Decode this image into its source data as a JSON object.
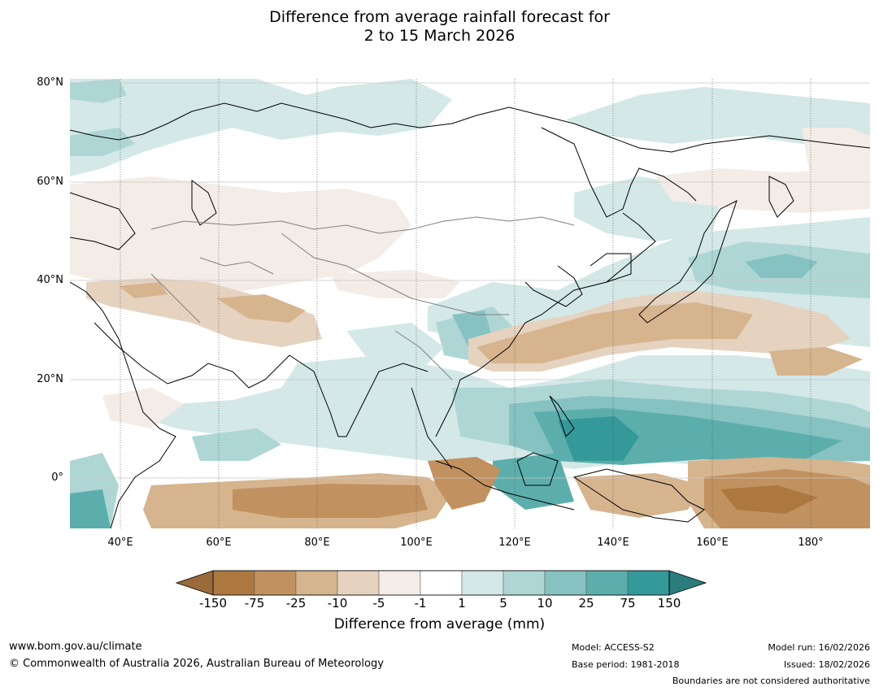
{
  "title_line1": "Difference from average rainfall forecast for",
  "title_line2": "2 to 15 March 2026",
  "lat_labels": [
    "80°N",
    "60°N",
    "40°N",
    "20°N",
    "0°"
  ],
  "lon_labels": [
    "40°E",
    "60°E",
    "80°E",
    "100°E",
    "120°E",
    "140°E",
    "160°E",
    "180°"
  ],
  "colorbar": {
    "label": "Difference from average (mm)",
    "ticks": [
      "-150",
      "-75",
      "-25",
      "-10",
      "-5",
      "-1",
      "1",
      "5",
      "10",
      "25",
      "75",
      "150"
    ],
    "colors": [
      "#9a6a3a",
      "#ad7840",
      "#c1915f",
      "#d6b48e",
      "#e5d2bf",
      "#f4ece6",
      "#ffffff",
      "#d3e8e7",
      "#aed6d5",
      "#86c2c1",
      "#5caeac",
      "#35999a",
      "#2a7d7c"
    ]
  },
  "footer": {
    "url": "www.bom.gov.au/climate",
    "copyright": "© Commonwealth of Australia 2026, Australian Bureau of Meteorology",
    "model": "Model: ACCESS-S2",
    "base_period": "Base period: 1981-2018",
    "model_run": "Model run: 16/02/2026",
    "issued": "Issued: 18/02/2026",
    "disclaimer": "Boundaries are not considered authoritative"
  }
}
